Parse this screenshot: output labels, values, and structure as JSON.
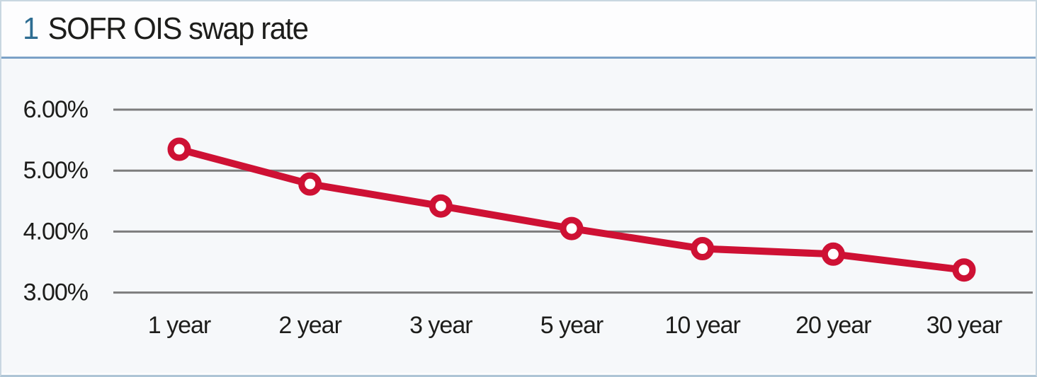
{
  "figure": {
    "number": "1",
    "title": "SOFR OIS swap rate"
  },
  "colors": {
    "line": "#ce1134",
    "marker_fill": "#ffffff",
    "gridline": "#7d7d7d",
    "figure_number": "#2e6d92",
    "title_text": "#1d1d1b",
    "header_divider": "#7ba1c7",
    "panel_border": "#c9d7e1",
    "chart_background": "#f6f8fa"
  },
  "chart_data": {
    "type": "line",
    "title": "1 SOFR OIS swap rate",
    "categories": [
      "1 year",
      "2 year",
      "3 year",
      "5 year",
      "10 year",
      "20 year",
      "30 year"
    ],
    "series": [
      {
        "name": "SOFR OIS swap rate",
        "values": [
          5.35,
          4.78,
          4.42,
          4.05,
          3.72,
          3.63,
          3.37
        ]
      }
    ],
    "xlabel": "",
    "ylabel": "",
    "yticks": [
      6.0,
      5.0,
      4.0,
      3.0
    ],
    "ytick_labels": [
      "6.00%",
      "5.00%",
      "4.00%",
      "3.00%"
    ],
    "ylim": [
      2.85,
      6.25
    ],
    "grid": "horizontal-only",
    "legend": "none",
    "marker": "open-circle"
  }
}
